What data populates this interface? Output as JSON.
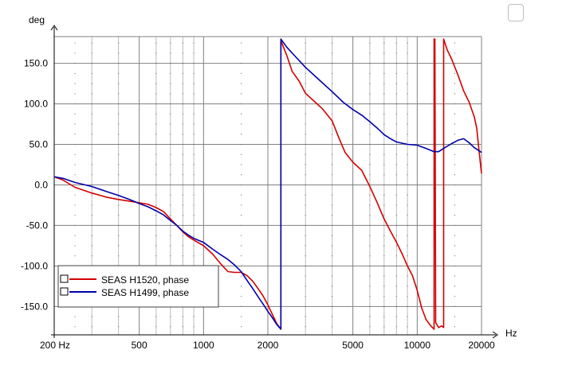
{
  "chart_data": {
    "type": "line",
    "title": "",
    "xlabel": "Hz",
    "ylabel": "deg",
    "x_scale": "log",
    "xlim": [
      200,
      20000
    ],
    "ylim": [
      -185,
      183
    ],
    "grid": true,
    "legend_position": "bottom-left",
    "x_ticks": [
      {
        "value": 200,
        "label": "200 Hz"
      },
      {
        "value": 500,
        "label": "500"
      },
      {
        "value": 1000,
        "label": "1000"
      },
      {
        "value": 2000,
        "label": "2000"
      },
      {
        "value": 5000,
        "label": "5000"
      },
      {
        "value": 10000,
        "label": "10000"
      },
      {
        "value": 20000,
        "label": "20000"
      }
    ],
    "y_ticks": [
      {
        "value": 150,
        "label": "150.0"
      },
      {
        "value": 100,
        "label": "100.0"
      },
      {
        "value": 50,
        "label": "50.0"
      },
      {
        "value": 0,
        "label": "0.0"
      },
      {
        "value": -50,
        "label": "-50.0"
      },
      {
        "value": -100,
        "label": "-100.0"
      },
      {
        "value": -150,
        "label": "-150.0"
      }
    ],
    "series": [
      {
        "name": "SEAS H1520, phase",
        "color": "#d40000",
        "points": [
          [
            200,
            10
          ],
          [
            220,
            6
          ],
          [
            250,
            -3
          ],
          [
            300,
            -10
          ],
          [
            350,
            -15
          ],
          [
            400,
            -18
          ],
          [
            450,
            -20
          ],
          [
            500,
            -22
          ],
          [
            550,
            -24
          ],
          [
            600,
            -28
          ],
          [
            650,
            -33
          ],
          [
            700,
            -42
          ],
          [
            750,
            -50
          ],
          [
            800,
            -58
          ],
          [
            850,
            -64
          ],
          [
            900,
            -68
          ],
          [
            1000,
            -75
          ],
          [
            1100,
            -85
          ],
          [
            1200,
            -97
          ],
          [
            1300,
            -107
          ],
          [
            1400,
            -108
          ],
          [
            1500,
            -108
          ],
          [
            1600,
            -112
          ],
          [
            1700,
            -119
          ],
          [
            1800,
            -128
          ],
          [
            1900,
            -137
          ],
          [
            2000,
            -148
          ],
          [
            2100,
            -160
          ],
          [
            2200,
            -171
          ],
          [
            2300,
            -178
          ],
          [
            2300,
            178
          ],
          [
            2450,
            160
          ],
          [
            2600,
            140
          ],
          [
            2800,
            128
          ],
          [
            3000,
            113
          ],
          [
            3300,
            103
          ],
          [
            3600,
            94
          ],
          [
            4000,
            79
          ],
          [
            4300,
            58
          ],
          [
            4600,
            40
          ],
          [
            5000,
            28
          ],
          [
            5500,
            18
          ],
          [
            6000,
            -2
          ],
          [
            6500,
            -22
          ],
          [
            7000,
            -42
          ],
          [
            7500,
            -57
          ],
          [
            8000,
            -71
          ],
          [
            8500,
            -85
          ],
          [
            9000,
            -100
          ],
          [
            9500,
            -112
          ],
          [
            10000,
            -130
          ],
          [
            10500,
            -152
          ],
          [
            11000,
            -166
          ],
          [
            11500,
            -173
          ],
          [
            12000,
            -178
          ],
          [
            12000,
            180
          ],
          [
            12100,
            180
          ],
          [
            12200,
            -170
          ],
          [
            12600,
            -176
          ],
          [
            13000,
            -174
          ],
          [
            13300,
            -176
          ],
          [
            13300,
            180
          ],
          [
            13800,
            167
          ],
          [
            14500,
            155
          ],
          [
            15500,
            136
          ],
          [
            16500,
            116
          ],
          [
            17500,
            102
          ],
          [
            18500,
            84
          ],
          [
            19000,
            70
          ],
          [
            19500,
            40
          ],
          [
            20000,
            14
          ]
        ]
      },
      {
        "name": "SEAS H1499, phase",
        "color": "#0000aa",
        "points": [
          [
            200,
            10
          ],
          [
            220,
            8
          ],
          [
            250,
            3
          ],
          [
            300,
            -2
          ],
          [
            350,
            -8
          ],
          [
            400,
            -13
          ],
          [
            450,
            -18
          ],
          [
            500,
            -23
          ],
          [
            550,
            -27
          ],
          [
            600,
            -32
          ],
          [
            650,
            -37
          ],
          [
            700,
            -44
          ],
          [
            750,
            -50
          ],
          [
            800,
            -57
          ],
          [
            850,
            -62
          ],
          [
            900,
            -66
          ],
          [
            1000,
            -71
          ],
          [
            1100,
            -79
          ],
          [
            1200,
            -86
          ],
          [
            1300,
            -92
          ],
          [
            1400,
            -99
          ],
          [
            1500,
            -107
          ],
          [
            1600,
            -118
          ],
          [
            1700,
            -128
          ],
          [
            1800,
            -138
          ],
          [
            1900,
            -147
          ],
          [
            2000,
            -156
          ],
          [
            2100,
            -164
          ],
          [
            2200,
            -172
          ],
          [
            2300,
            -178
          ],
          [
            2300,
            180
          ],
          [
            2450,
            170
          ],
          [
            2700,
            158
          ],
          [
            3000,
            145
          ],
          [
            3300,
            135
          ],
          [
            3600,
            126
          ],
          [
            4000,
            115
          ],
          [
            4500,
            102
          ],
          [
            5000,
            93
          ],
          [
            5500,
            86
          ],
          [
            6000,
            78
          ],
          [
            6500,
            70
          ],
          [
            7000,
            62
          ],
          [
            7500,
            57
          ],
          [
            8000,
            53
          ],
          [
            9000,
            50
          ],
          [
            10000,
            49
          ],
          [
            11000,
            45
          ],
          [
            12000,
            41
          ],
          [
            12600,
            41
          ],
          [
            13300,
            45
          ],
          [
            14500,
            51
          ],
          [
            15500,
            55
          ],
          [
            16500,
            57
          ],
          [
            17500,
            52
          ],
          [
            18500,
            46
          ],
          [
            19500,
            42
          ],
          [
            20000,
            40
          ]
        ]
      }
    ]
  },
  "legend": {
    "items": [
      {
        "label": "SEAS H1520, phase",
        "color": "#d40000"
      },
      {
        "label": "SEAS H1499, phase",
        "color": "#0000aa"
      }
    ]
  }
}
